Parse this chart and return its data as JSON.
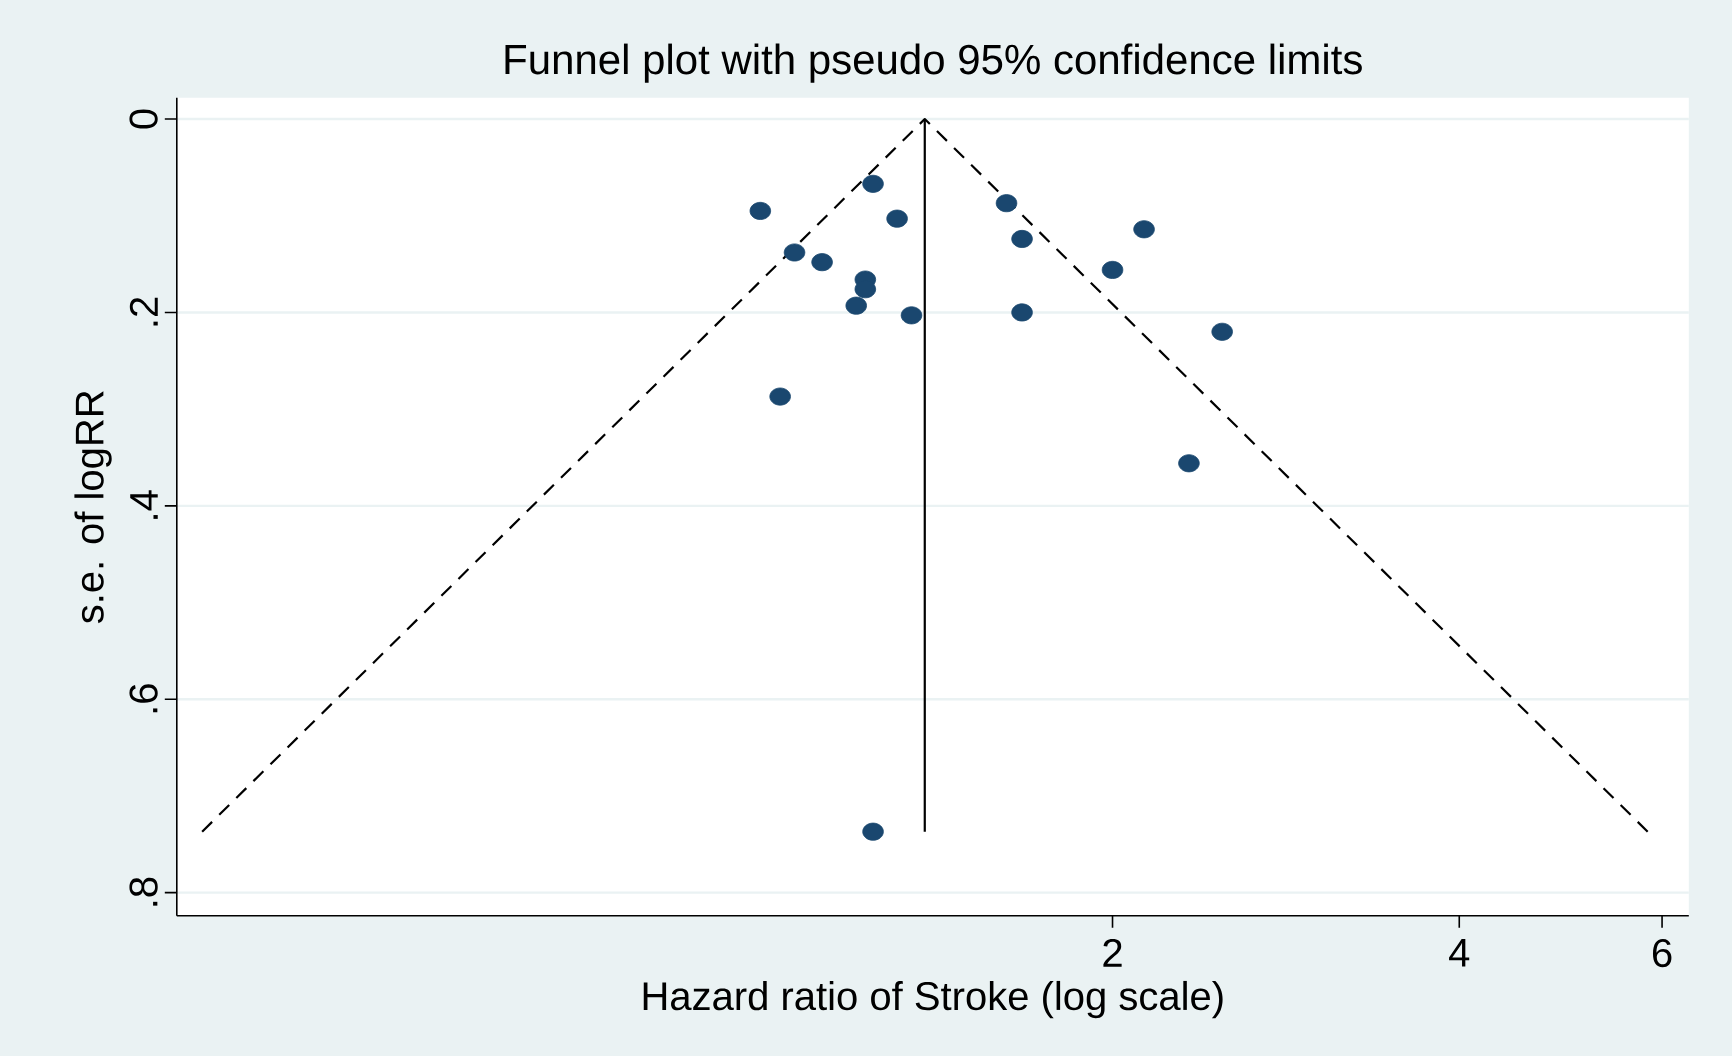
{
  "chart_data": {
    "type": "scatter",
    "title": "Funnel plot with pseudo 95% confidence limits",
    "xlabel": "Hazard ratio of Stroke (log scale)",
    "ylabel": "s.e. of logRR",
    "log": "x",
    "grid": "y",
    "xlim": [
      0.308,
      6.33
    ],
    "ylim": [
      0.824,
      -0.022
    ],
    "xticks": [
      2,
      4,
      6
    ],
    "yticks": [
      0,
      {
        "value": 0.2,
        "label": ".2"
      },
      {
        "value": 0.4,
        "label": ".4"
      },
      {
        "value": 0.6,
        "label": ".6"
      },
      {
        "value": 0.8,
        "label": ".8"
      }
    ],
    "series": [
      {
        "marker": "circle",
        "color": "#1a476f",
        "x": [
          0.989,
          1.239,
          1.3,
          1.059,
          1.119,
          1.22,
          1.22,
          1.198,
          1.338,
          1.029,
          1.239,
          1.618,
          1.669,
          1.669,
          2.13,
          2.0,
          2.49,
          2.33
        ],
        "values": [
          0.095,
          0.067,
          0.103,
          0.138,
          0.148,
          0.166,
          0.176,
          0.193,
          0.203,
          0.287,
          0.737,
          0.087,
          0.124,
          0.2,
          0.114,
          0.156,
          0.22,
          0.356
        ]
      },
      {
        "type": "line",
        "marker": "none",
        "line_style": "dashed",
        "color": "#000000",
        "x": [
          0.324,
          1.374,
          5.83
        ],
        "values": [
          0.737,
          0,
          0.737
        ]
      },
      {
        "type": "line",
        "marker": "none",
        "line_style": "solid",
        "color": "#000000",
        "x": [
          1.374,
          1.374
        ],
        "values": [
          0,
          0.737
        ]
      }
    ]
  }
}
